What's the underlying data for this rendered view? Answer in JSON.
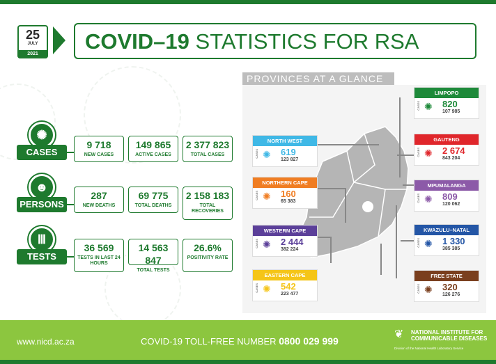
{
  "date": {
    "day": "25",
    "month": "JULY",
    "year": "2021"
  },
  "title": {
    "bold": "COVID–19",
    "rest": " STATISTICS FOR RSA"
  },
  "categories": [
    {
      "label": "CASES",
      "icon": "virus-icon",
      "stats": [
        {
          "value": "9 718",
          "label": "NEW CASES"
        },
        {
          "value": "149 865",
          "label": "ACTIVE CASES"
        },
        {
          "value": "2 377 823",
          "label": "TOTAL CASES"
        }
      ]
    },
    {
      "label": "PERSONS",
      "icon": "people-icon",
      "stats": [
        {
          "value": "287",
          "label": "NEW DEATHS"
        },
        {
          "value": "69 775",
          "label": "TOTAL DEATHS"
        },
        {
          "value": "2 158 183",
          "label": "TOTAL RECOVERIES"
        }
      ]
    },
    {
      "label": "TESTS",
      "icon": "test-tubes-icon",
      "stats": [
        {
          "value": "36 569",
          "label": "TESTS IN LAST 24 HOURS"
        },
        {
          "value": "14 563 847",
          "label": "TOTAL TESTS"
        },
        {
          "value": "26.6%",
          "label": "POSITIVITY RATE"
        }
      ]
    }
  ],
  "provinces_header": "PROVINCES AT A GLANCE",
  "cases_label": "CASES",
  "provinces": [
    {
      "name": "NORTH WEST",
      "new": "619",
      "total": "123 827",
      "color": "#3fb8e6"
    },
    {
      "name": "NORTHERN CAPE",
      "new": "160",
      "total": "65 383",
      "color": "#f07d22"
    },
    {
      "name": "WESTERN CAPE",
      "new": "2 444",
      "total": "382 224",
      "color": "#5b3f99"
    },
    {
      "name": "EASTERN CAPE",
      "new": "542",
      "total": "223 477",
      "color": "#f5c518"
    },
    {
      "name": "LIMPOPO",
      "new": "820",
      "total": "107 985",
      "color": "#1e8a3a"
    },
    {
      "name": "GAUTENG",
      "new": "2 674",
      "total": "843 204",
      "color": "#e0262b"
    },
    {
      "name": "MPUMALANGA",
      "new": "809",
      "total": "120 062",
      "color": "#8c5aa8"
    },
    {
      "name": "KWAZULU–NATAL",
      "new": "1 330",
      "total": "385 385",
      "color": "#2456a6"
    },
    {
      "name": "FREE STATE",
      "new": "320",
      "total": "126 276",
      "color": "#7a3f1e"
    }
  ],
  "footer": {
    "url": "www.nicd.ac.za",
    "toll_label": "COVID-19 TOLL-FREE NUMBER",
    "toll_number": "0800 029 999",
    "org_line1": "NATIONAL INSTITUTE FOR",
    "org_line2": "COMMUNICABLE DISEASES",
    "org_sub": "Division of the National Health Laboratory Service"
  }
}
